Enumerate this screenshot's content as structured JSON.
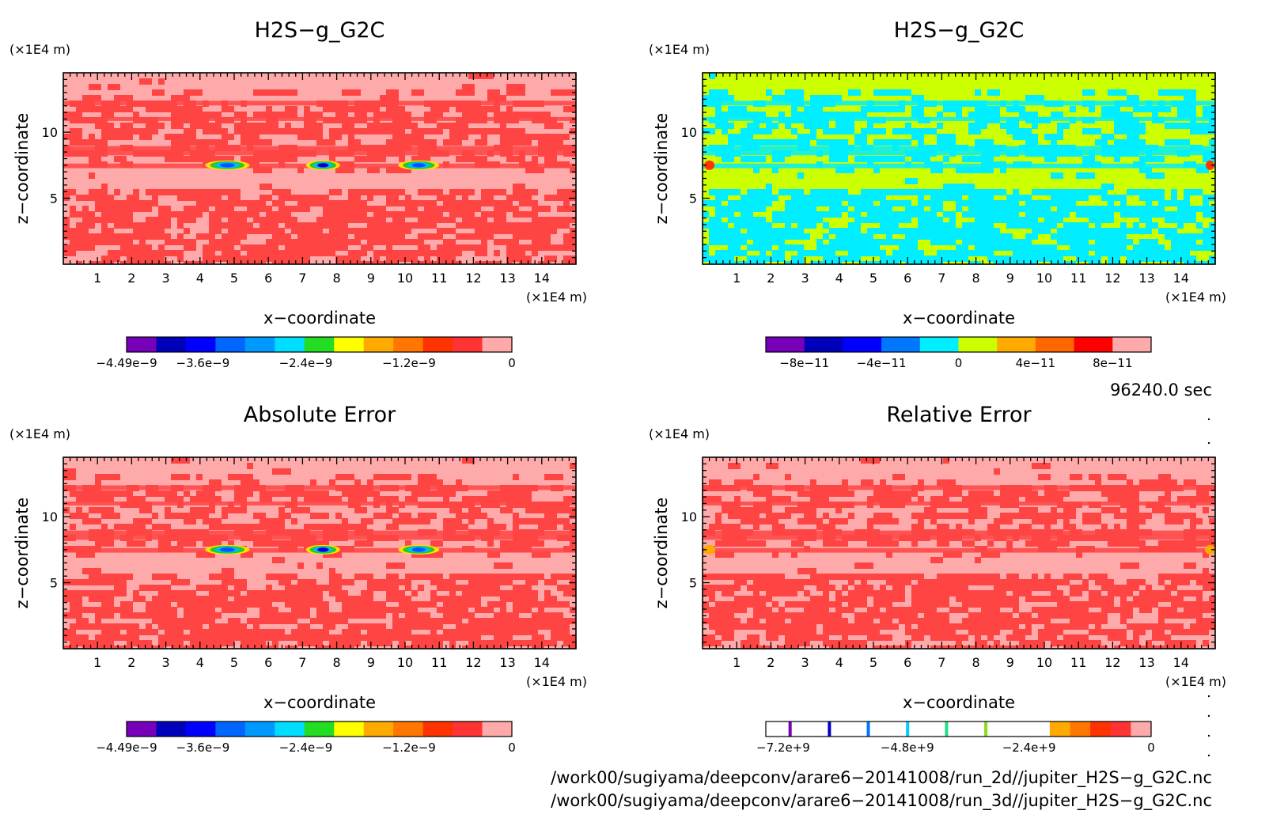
{
  "chart_data": [
    {
      "type": "heatmap",
      "title": "H2S−g_G2C",
      "xlabel": "x−coordinate",
      "ylabel": "z−coordinate",
      "x_unit": "(×1E4 m)",
      "y_unit": "(×1E4 m)",
      "xlim": [
        0,
        15
      ],
      "ylim": [
        0,
        14.5
      ],
      "x_ticks": [
        1,
        2,
        3,
        4,
        5,
        6,
        7,
        8,
        9,
        10,
        11,
        12,
        13,
        14
      ],
      "y_ticks": [
        5,
        10
      ],
      "background": "#ffaaaa",
      "pattern": "#ff4444",
      "spots": [
        {
          "x": 4.8,
          "z": 7.5,
          "w": 1.3,
          "colors": [
            "#ffe000",
            "#22cc22",
            "#00bbff",
            "#0055ff"
          ]
        },
        {
          "x": 7.6,
          "z": 7.5,
          "w": 1.0,
          "colors": [
            "#ffe000",
            "#22cc22",
            "#00bbff",
            "#0000cc"
          ]
        },
        {
          "x": 10.4,
          "z": 7.5,
          "w": 1.2,
          "colors": [
            "#ffe000",
            "#22cc22",
            "#00bbff",
            "#0055ff"
          ]
        }
      ],
      "colorbar": {
        "colors": [
          "#7700bb",
          "#0000bb",
          "#0000ff",
          "#0066ff",
          "#0099ff",
          "#00ddff",
          "#22dd22",
          "#ffff00",
          "#ffaa00",
          "#ff7700",
          "#ff3300",
          "#ff3333",
          "#ffaaaa"
        ],
        "labels": [
          {
            "text": "−4.49e−9",
            "pos": 0.0
          },
          {
            "text": "−3.6e−9",
            "pos": 0.198
          },
          {
            "text": "−2.4e−9",
            "pos": 0.465
          },
          {
            "text": "−1.2e−9",
            "pos": 0.733
          },
          {
            "text": "0",
            "pos": 1.0
          }
        ]
      }
    },
    {
      "type": "heatmap",
      "title": "H2S−g_G2C",
      "xlabel": "x−coordinate",
      "ylabel": "z−coordinate",
      "x_unit": "(×1E4 m)",
      "y_unit": "(×1E4 m)",
      "xlim": [
        0,
        15
      ],
      "ylim": [
        0,
        14.5
      ],
      "x_ticks": [
        1,
        2,
        3,
        4,
        5,
        6,
        7,
        8,
        9,
        10,
        11,
        12,
        13,
        14
      ],
      "y_ticks": [
        5,
        10
      ],
      "background": "#ccff00",
      "pattern": "#00eeff",
      "spots": [
        {
          "x": 0.2,
          "z": 7.5,
          "w": 0.3,
          "colors": [
            "#ff3300"
          ]
        },
        {
          "x": 14.85,
          "z": 7.5,
          "w": 0.25,
          "colors": [
            "#ff3300"
          ]
        }
      ],
      "colorbar": {
        "colors": [
          "#7700bb",
          "#0000bb",
          "#0000ff",
          "#0077ff",
          "#00eeff",
          "#ccff00",
          "#ffaa00",
          "#ff6600",
          "#ff0000",
          "#ffaaaa"
        ],
        "labels": [
          {
            "text": "−8e−11",
            "pos": 0.1
          },
          {
            "text": "−4e−11",
            "pos": 0.3
          },
          {
            "text": "0",
            "pos": 0.5
          },
          {
            "text": "4e−11",
            "pos": 0.7
          },
          {
            "text": "8e−11",
            "pos": 0.9
          }
        ]
      }
    },
    {
      "type": "heatmap",
      "title": "Absolute Error",
      "xlabel": "x−coordinate",
      "ylabel": "z−coordinate",
      "x_unit": "(×1E4 m)",
      "y_unit": "(×1E4 m)",
      "xlim": [
        0,
        15
      ],
      "ylim": [
        0,
        14.5
      ],
      "x_ticks": [
        1,
        2,
        3,
        4,
        5,
        6,
        7,
        8,
        9,
        10,
        11,
        12,
        13,
        14
      ],
      "y_ticks": [
        5,
        10
      ],
      "background": "#ffaaaa",
      "pattern": "#ff4444",
      "spots": [
        {
          "x": 4.8,
          "z": 7.5,
          "w": 1.3,
          "colors": [
            "#ffe000",
            "#22cc22",
            "#00bbff",
            "#0055ff"
          ]
        },
        {
          "x": 7.6,
          "z": 7.5,
          "w": 1.0,
          "colors": [
            "#ffe000",
            "#22cc22",
            "#00bbff",
            "#0000cc"
          ]
        },
        {
          "x": 10.4,
          "z": 7.5,
          "w": 1.2,
          "colors": [
            "#ffe000",
            "#22cc22",
            "#00bbff",
            "#0055ff"
          ]
        }
      ],
      "colorbar": {
        "colors": [
          "#7700bb",
          "#0000bb",
          "#0000ff",
          "#0066ff",
          "#0099ff",
          "#00ddff",
          "#22dd22",
          "#ffff00",
          "#ffaa00",
          "#ff7700",
          "#ff3300",
          "#ff3333",
          "#ffaaaa"
        ],
        "labels": [
          {
            "text": "−4.49e−9",
            "pos": 0.0
          },
          {
            "text": "−3.6e−9",
            "pos": 0.198
          },
          {
            "text": "−2.4e−9",
            "pos": 0.465
          },
          {
            "text": "−1.2e−9",
            "pos": 0.733
          },
          {
            "text": "0",
            "pos": 1.0
          }
        ]
      }
    },
    {
      "type": "heatmap",
      "title": "Relative Error",
      "xlabel": "x−coordinate",
      "ylabel": "z−coordinate",
      "x_unit": "(×1E4 m)",
      "y_unit": "(×1E4 m)",
      "xlim": [
        0,
        15
      ],
      "ylim": [
        0,
        14.5
      ],
      "x_ticks": [
        1,
        2,
        3,
        4,
        5,
        6,
        7,
        8,
        9,
        10,
        11,
        12,
        13,
        14
      ],
      "y_ticks": [
        5,
        10
      ],
      "background": "#ffaaaa",
      "pattern": "#ff4444",
      "spots": [
        {
          "x": 0.2,
          "z": 7.5,
          "w": 0.35,
          "colors": [
            "#ffaa00"
          ]
        },
        {
          "x": 14.85,
          "z": 7.5,
          "w": 0.3,
          "colors": [
            "#ffaa00"
          ]
        }
      ],
      "colorbar": {
        "colors": [
          "#ffffff",
          "#ffffff",
          "#ffffff",
          "#ffffff",
          "#ffffff",
          "#ffffff",
          "#ffffff",
          "#ffffff",
          "#ffffff",
          "#ffffff",
          "#ffffff",
          "#ffffff",
          "#ffffff",
          "#ffffff",
          "#ffaa00",
          "#ff7700",
          "#ff3300",
          "#ff3333",
          "#ffaaaa"
        ],
        "markers": [
          {
            "pos": 0.063,
            "color": "#7700bb"
          },
          {
            "pos": 0.165,
            "color": "#0000cc"
          },
          {
            "pos": 0.266,
            "color": "#0077ff"
          },
          {
            "pos": 0.368,
            "color": "#00ccff"
          },
          {
            "pos": 0.469,
            "color": "#22dd88"
          },
          {
            "pos": 0.571,
            "color": "#88dd22"
          }
        ],
        "labels": [
          {
            "text": "−7.2e+9",
            "pos": 0.045
          },
          {
            "text": "−4.8e+9",
            "pos": 0.367
          },
          {
            "text": "−2.4e+9",
            "pos": 0.683
          },
          {
            "text": "0",
            "pos": 1.0
          }
        ]
      }
    }
  ],
  "time_label": "96240.0 sec",
  "file_paths": [
    "/work00/sugiyama/deepconv/arare6−20141008/run_2d//jupiter_H2S−g_G2C.nc",
    "/work00/sugiyama/deepconv/arare6−20141008/run_3d//jupiter_H2S−g_G2C.nc"
  ]
}
